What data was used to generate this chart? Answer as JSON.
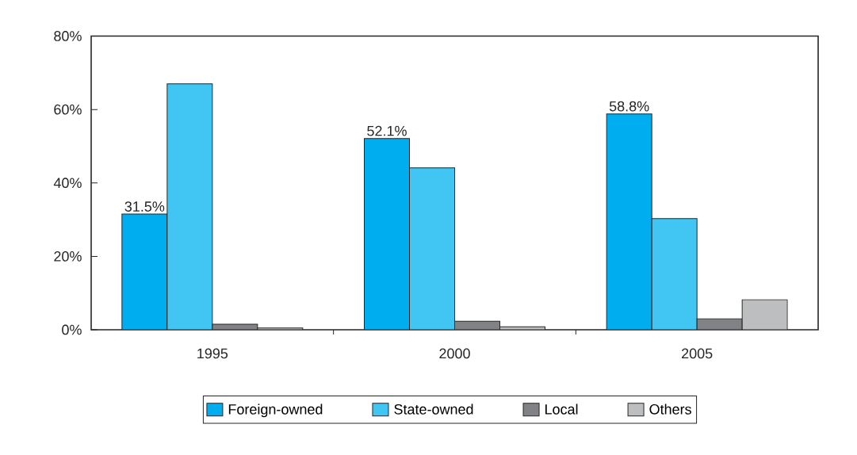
{
  "chart_data": {
    "type": "bar",
    "categories": [
      "1995",
      "2000",
      "2005"
    ],
    "series": [
      {
        "name": "Foreign-owned",
        "color": "#00aeef",
        "values": [
          31.5,
          52.1,
          58.8
        ],
        "value_labels": [
          "31.5%",
          "52.1%",
          "58.8%"
        ]
      },
      {
        "name": "State-owned",
        "color": "#41c6f4",
        "values": [
          67.0,
          44.1,
          30.3
        ]
      },
      {
        "name": "Local",
        "color": "#808285",
        "values": [
          1.5,
          2.3,
          3.0
        ]
      },
      {
        "name": "Others",
        "color": "#bcbec0",
        "values": [
          0.5,
          0.8,
          8.2
        ]
      }
    ],
    "ylim": [
      0,
      80
    ],
    "yticks": [
      {
        "value": 0,
        "label": "0%"
      },
      {
        "value": 20,
        "label": "20%"
      },
      {
        "value": 40,
        "label": "40%"
      },
      {
        "value": 60,
        "label": "60%"
      },
      {
        "value": 80,
        "label": "80%"
      }
    ],
    "legend": "bottom"
  }
}
